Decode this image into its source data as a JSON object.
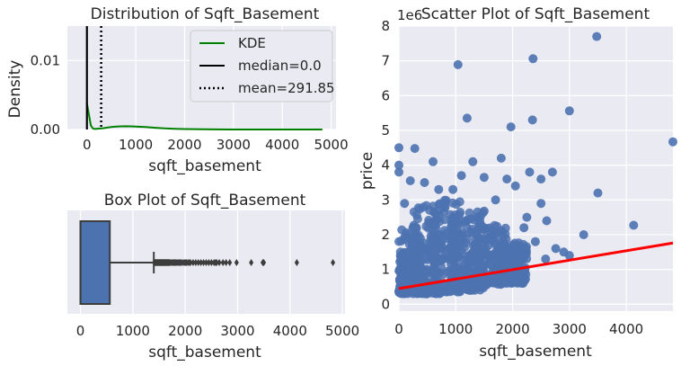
{
  "figure": {
    "background": "#ffffff",
    "axes_facecolor": "#eaeaf2",
    "grid_color": "#ffffff",
    "text_color": "#262626"
  },
  "chart_data": [
    {
      "type": "line",
      "title": "Distribution of Sqft_Basement",
      "xlabel": "sqft_basement",
      "ylabel": "Density",
      "xlim": [
        -400,
        5100
      ],
      "ylim": [
        0,
        0.015
      ],
      "xticks": [
        "0",
        "1000",
        "2000",
        "3000",
        "4000",
        "5000"
      ],
      "yticks": [
        "0.00",
        "0.01"
      ],
      "grid": true,
      "legend_position": "upper-right",
      "series": [
        {
          "name": "KDE",
          "color": "#008000",
          "style": "solid",
          "x": [
            0,
            40,
            80,
            120,
            160,
            200,
            240,
            300,
            350,
            400,
            450,
            500,
            600,
            700,
            800,
            900,
            1000,
            1200,
            1400,
            1600,
            1800,
            2000,
            2400,
            3000,
            3500,
            4000,
            4500,
            4820
          ],
          "y": [
            0.0038,
            0.0022,
            0.0006,
            0.00015,
            8e-05,
            0.0001,
            0.00013,
            0.00016,
            0.0002,
            0.00026,
            0.00031,
            0.00036,
            0.00042,
            0.00046,
            0.00047,
            0.00046,
            0.00043,
            0.00035,
            0.00025,
            0.00016,
            0.0001,
            6e-05,
            2e-05,
            5e-06,
            2e-06,
            1e-06,
            5e-07,
            2e-07
          ]
        },
        {
          "name": "median=0.0",
          "color": "#000000",
          "style": "solid",
          "x_value": 0.0
        },
        {
          "name": "mean=291.85",
          "color": "#000000",
          "style": "dotted",
          "x_value": 291.85
        }
      ]
    },
    {
      "type": "box",
      "title": "Box Plot of Sqft_Basement",
      "xlabel": "sqft_basement",
      "xlim": [
        -250,
        5050
      ],
      "xticks": [
        "0",
        "1000",
        "2000",
        "3000",
        "4000",
        "5000"
      ],
      "grid": true,
      "box_color": "#4c72b0",
      "stats": {
        "whisker_low": 0,
        "q1": 0,
        "median": 0,
        "q3": 560,
        "whisker_high": 1400
      },
      "outliers": [
        1410,
        1420,
        1430,
        1440,
        1450,
        1460,
        1470,
        1480,
        1490,
        1500,
        1510,
        1520,
        1530,
        1540,
        1550,
        1560,
        1570,
        1580,
        1590,
        1600,
        1610,
        1620,
        1630,
        1640,
        1650,
        1660,
        1670,
        1680,
        1690,
        1700,
        1720,
        1740,
        1760,
        1780,
        1800,
        1820,
        1840,
        1860,
        1880,
        1900,
        1920,
        1950,
        1980,
        2000,
        2020,
        2050,
        2080,
        2100,
        2150,
        2200,
        2250,
        2300,
        2350,
        2400,
        2450,
        2500,
        2550,
        2580,
        2600,
        2650,
        2720,
        2780,
        2850,
        2980,
        3260,
        3480,
        3500,
        4130,
        4820
      ]
    },
    {
      "type": "scatter",
      "title": "Scatter Plot of Sqft_Basement",
      "xlabel": "sqft_basement",
      "ylabel": "price",
      "y_offset_label": "1e6",
      "xlim": [
        0,
        4820
      ],
      "ylim": [
        -0.2,
        8
      ],
      "xticks": [
        "0",
        "1000",
        "2000",
        "3000",
        "4000"
      ],
      "yticks": [
        "0",
        "1",
        "2",
        "3",
        "4",
        "5",
        "6",
        "7",
        "8"
      ],
      "grid": true,
      "point_color": "#4c72b0",
      "regression": {
        "color": "#ff0000",
        "x": [
          0,
          4820
        ],
        "y": [
          0.45,
          1.76
        ]
      },
      "cluster": [
        {
          "x": 0,
          "y": 0.3,
          "dy": 1.2,
          "dx": 120
        },
        {
          "x": 200,
          "y": 0.3,
          "dy": 2.0,
          "dx": 200
        },
        {
          "x": 500,
          "y": 0.3,
          "dy": 2.6,
          "dx": 250
        },
        {
          "x": 850,
          "y": 0.35,
          "dy": 2.7,
          "dx": 250
        },
        {
          "x": 1200,
          "y": 0.4,
          "dy": 2.3,
          "dx": 300
        },
        {
          "x": 1600,
          "y": 0.5,
          "dy": 1.8,
          "dx": 300
        },
        {
          "x": 2000,
          "y": 0.6,
          "dy": 1.2,
          "dx": 250
        }
      ],
      "points": [
        [
          3480,
          7.7
        ],
        [
          1040,
          6.89
        ],
        [
          2360,
          7.06
        ],
        [
          0,
          4.5
        ],
        [
          280,
          4.48
        ],
        [
          1200,
          5.35
        ],
        [
          1970,
          5.1
        ],
        [
          2350,
          5.3
        ],
        [
          3000,
          5.56
        ],
        [
          4820,
          4.67
        ],
        [
          0,
          3.8
        ],
        [
          200,
          3.55
        ],
        [
          450,
          3.5
        ],
        [
          700,
          3.3
        ],
        [
          1100,
          3.7
        ],
        [
          1500,
          3.65
        ],
        [
          1900,
          3.6
        ],
        [
          2300,
          3.8
        ],
        [
          2700,
          3.8
        ],
        [
          2500,
          3.6
        ],
        [
          3500,
          3.2
        ],
        [
          3250,
          2.0
        ],
        [
          4130,
          2.27
        ],
        [
          2760,
          1.6
        ],
        [
          2580,
          1.3
        ],
        [
          2900,
          1.5
        ],
        [
          3000,
          1.4
        ],
        [
          2400,
          1.8
        ],
        [
          2200,
          2.2
        ],
        [
          2250,
          2.5
        ],
        [
          1800,
          4.2
        ],
        [
          1300,
          4.1
        ],
        [
          600,
          4.1
        ],
        [
          950,
          3.3
        ],
        [
          2050,
          3.4
        ],
        [
          0,
          4.0
        ],
        [
          100,
          2.9
        ],
        [
          2600,
          2.4
        ],
        [
          2500,
          2.9
        ],
        [
          1700,
          3.0
        ]
      ]
    }
  ]
}
